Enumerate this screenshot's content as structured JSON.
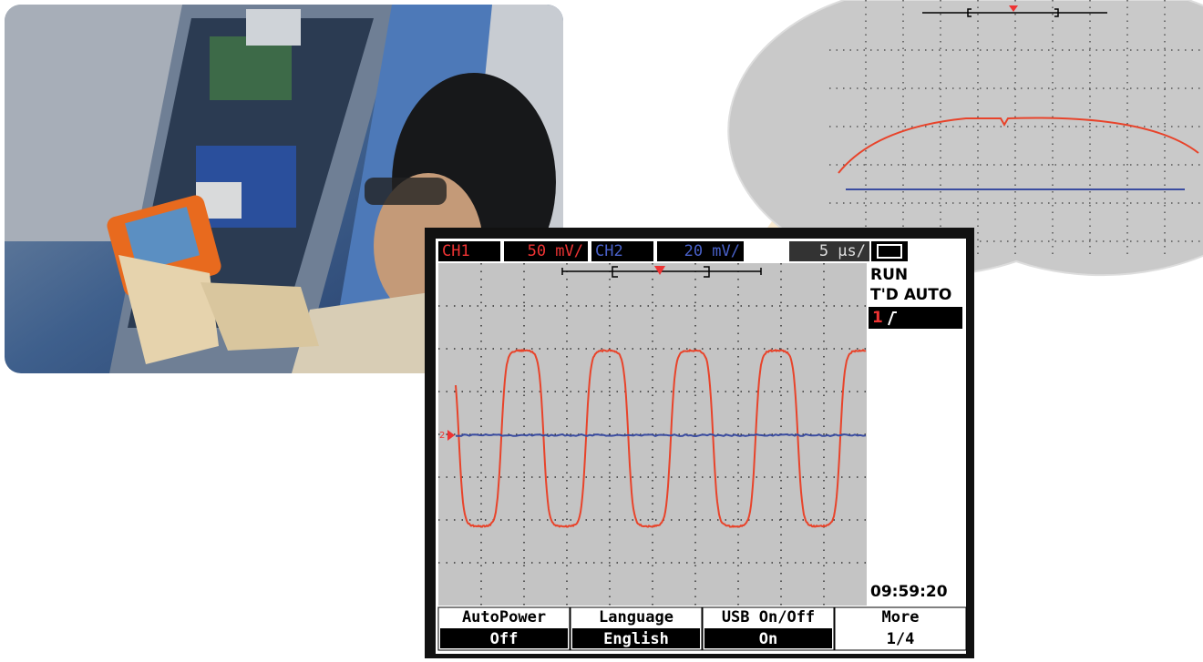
{
  "screen": {
    "ch1": {
      "label": "CH1",
      "scale": "50 mV/"
    },
    "ch2": {
      "label": "CH2",
      "scale": "20 mV/"
    },
    "timebase": "5 μs/",
    "status": "RUN",
    "trigger_mode": "T'D AUTO",
    "trigger_source": "1",
    "ch2_marker": "2",
    "clock": "09:59:20"
  },
  "softkeys": [
    {
      "title": "AutoPower",
      "value": "Off"
    },
    {
      "title": "Language",
      "value": "English"
    },
    {
      "title": "USB On/Off",
      "value": "On"
    },
    {
      "title": "More",
      "value": "1/4"
    }
  ]
}
